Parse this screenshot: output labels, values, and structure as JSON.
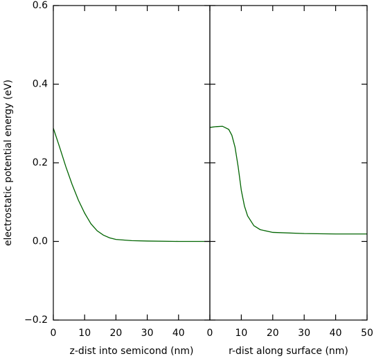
{
  "chart_data": [
    {
      "type": "line",
      "x_label": "z-dist into semicond (nm)",
      "y_label": "electrostatic potential energy (eV)",
      "x": [
        0,
        2,
        4,
        6,
        8,
        10,
        12,
        14,
        16,
        18,
        20,
        25,
        30,
        40,
        50
      ],
      "series": [
        {
          "color": "#006400",
          "values": [
            0.288,
            0.24,
            0.19,
            0.145,
            0.105,
            0.072,
            0.045,
            0.027,
            0.016,
            0.009,
            0.005,
            0.002,
            0.001,
            0,
            0
          ]
        }
      ],
      "xlim": [
        0,
        50
      ],
      "xticks": [
        0,
        10,
        20,
        30,
        40
      ],
      "ylim": [
        -0.2,
        0.6
      ],
      "yticks": [
        {
          "value": -0.2,
          "label": "−0.2"
        },
        {
          "value": 0,
          "label": "0.0"
        },
        {
          "value": 0.2,
          "label": "0.2"
        },
        {
          "value": 0.4,
          "label": "0.4"
        },
        {
          "value": 0.6,
          "label": "0.6"
        }
      ]
    },
    {
      "type": "line",
      "x_label": "r-dist along surface (nm)",
      "x": [
        0,
        2,
        4,
        6,
        7,
        8,
        9,
        10,
        11,
        12,
        14,
        16,
        20,
        30,
        40,
        50
      ],
      "series": [
        {
          "color": "#006400",
          "values": [
            0.29,
            0.292,
            0.293,
            0.285,
            0.27,
            0.24,
            0.19,
            0.13,
            0.09,
            0.065,
            0.04,
            0.03,
            0.023,
            0.02,
            0.019,
            0.019
          ]
        }
      ],
      "xlim": [
        0,
        50
      ],
      "xticks": [
        0,
        10,
        20,
        30,
        40,
        50
      ],
      "ylim": [
        -0.2,
        0.6
      ]
    }
  ]
}
